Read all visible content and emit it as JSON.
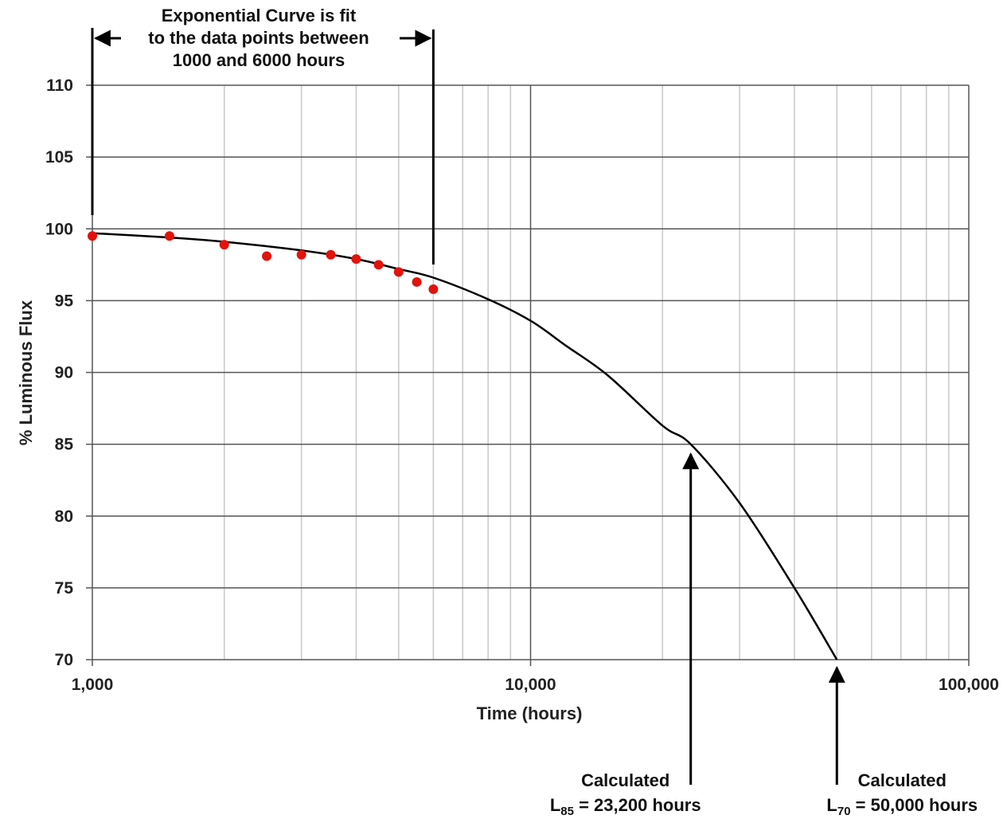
{
  "chart_data": {
    "type": "scatter",
    "x_scale": "log",
    "xlim": [
      1000,
      100000
    ],
    "ylim": [
      70,
      110
    ],
    "x_ticks": [
      {
        "value": 1000,
        "label": "1,000"
      },
      {
        "value": 10000,
        "label": "10,000"
      },
      {
        "value": 100000,
        "label": "100,000"
      }
    ],
    "y_ticks": [
      70,
      75,
      80,
      85,
      90,
      95,
      100,
      105,
      110
    ],
    "grid": true,
    "xlabel": "Time (hours)",
    "ylabel": "% Luminous Flux",
    "points": {
      "color": "#e3120b",
      "x": [
        1000,
        1500,
        2000,
        2500,
        3000,
        3500,
        4000,
        4500,
        5000,
        5500,
        6000
      ],
      "y": [
        99.5,
        99.5,
        98.9,
        98.1,
        98.2,
        98.2,
        97.9,
        97.5,
        97.0,
        96.3,
        95.8
      ]
    },
    "fit_curve": {
      "color": "#000000",
      "x": [
        1000,
        1500,
        2000,
        3000,
        4000,
        5000,
        6000,
        8000,
        10000,
        12000,
        15000,
        20000,
        23200,
        30000,
        40000,
        50000
      ],
      "y": [
        99.7,
        99.4,
        99.1,
        98.5,
        97.9,
        97.2,
        96.6,
        95.1,
        93.6,
        91.9,
        89.8,
        86.3,
        85.0,
        80.9,
        75.0,
        70.0
      ]
    },
    "annotations": {
      "fit_note": [
        "Exponential Curve is fit",
        "to the data points between",
        "1000 and 6000 hours"
      ],
      "fit_range": [
        1000,
        6000
      ],
      "l85": {
        "x": 23200,
        "y": 85,
        "line1": "Calculated",
        "sym": "L",
        "sub": "85",
        "rest": " = 23,200  hours"
      },
      "l70": {
        "x": 50000,
        "y": 70,
        "line1": "Calculated",
        "sym": "L",
        "sub": "70",
        "rest": " = 50,000  hours"
      }
    }
  }
}
